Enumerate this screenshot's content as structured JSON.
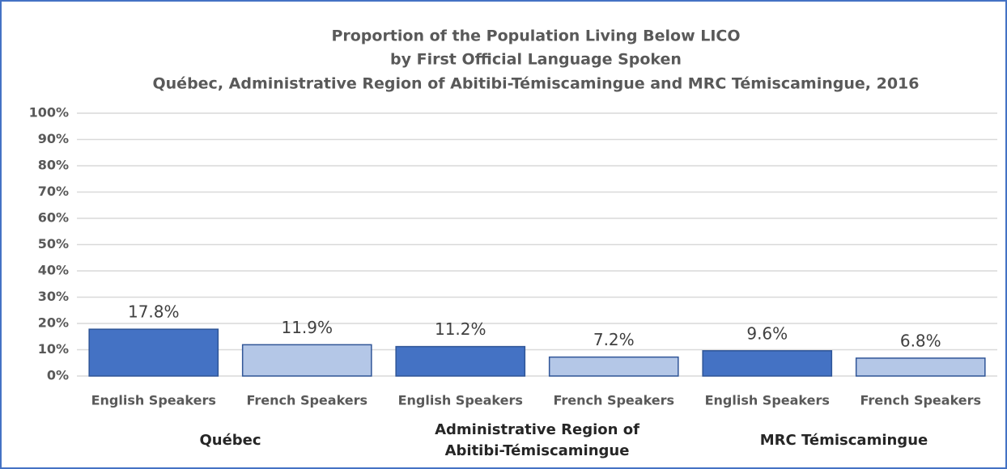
{
  "chart_data": {
    "type": "bar",
    "title": [
      "Proportion of the Population Living Below LICO",
      "by First Official Language Spoken",
      "Québec, Administrative Region of Abitibi-Témiscamingue and MRC Témiscamingue, 2016"
    ],
    "categories": [
      "English Speakers",
      "French Speakers",
      "English Speakers",
      "French Speakers",
      "English Speakers",
      "French Speakers"
    ],
    "groups": [
      "Québec",
      "Administrative Region of Abitibi-Témiscamingue",
      "MRC Témiscamingue"
    ],
    "values": [
      17.8,
      11.9,
      11.2,
      7.2,
      9.6,
      6.8
    ],
    "value_labels": [
      "17.8%",
      "11.9%",
      "11.2%",
      "7.2%",
      "9.6%",
      "6.8%"
    ],
    "colors": [
      "#4472c4",
      "#b4c7e7",
      "#4472c4",
      "#b4c7e7",
      "#4472c4",
      "#b4c7e7"
    ],
    "ylim": [
      0,
      100
    ],
    "yticks": [
      {
        "value": 0,
        "label": "0%"
      },
      {
        "value": 10,
        "label": "10%"
      },
      {
        "value": 20,
        "label": "20%"
      },
      {
        "value": 30,
        "label": "30%"
      },
      {
        "value": 40,
        "label": "40%"
      },
      {
        "value": 50,
        "label": "50%"
      },
      {
        "value": 60,
        "label": "60%"
      },
      {
        "value": 70,
        "label": "70%"
      },
      {
        "value": 80,
        "label": "80%"
      },
      {
        "value": 90,
        "label": "90%"
      },
      {
        "value": 100,
        "label": "100%"
      }
    ],
    "grid": true
  }
}
